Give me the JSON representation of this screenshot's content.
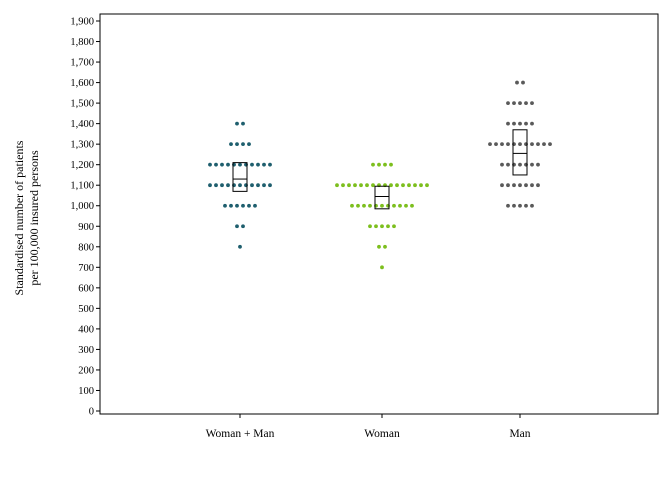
{
  "chart_data": {
    "type": "scatter",
    "subtype": "dot-strip-with-box",
    "title": "",
    "xlabel": "",
    "ylabel_lines": [
      "Standardised number of patients",
      "per 100,000 insured persons"
    ],
    "ylim": [
      0,
      1900
    ],
    "y_ticks": [
      "0",
      "100",
      "200",
      "300",
      "400",
      "500",
      "600",
      "700",
      "800",
      "900",
      "1,000",
      "1,100",
      "1,200",
      "1,300",
      "1,400",
      "1,500",
      "1,600",
      "1,700",
      "1,800",
      "1,900"
    ],
    "grid": false,
    "categories": [
      "Woman + Man",
      "Woman",
      "Man"
    ],
    "series": [
      {
        "category": "Woman + Man",
        "color": "#1f5f6e",
        "points": [
          {
            "y": 1400,
            "count": 2
          },
          {
            "y": 1300,
            "count": 4
          },
          {
            "y": 1200,
            "count": 11
          },
          {
            "y": 1100,
            "count": 11
          },
          {
            "y": 1000,
            "count": 6
          },
          {
            "y": 900,
            "count": 2
          },
          {
            "y": 800,
            "count": 1
          }
        ],
        "box": {
          "q1": 1070,
          "median": 1130,
          "q3": 1210
        }
      },
      {
        "category": "Woman",
        "color": "#7dbf1e",
        "points": [
          {
            "y": 1200,
            "count": 4
          },
          {
            "y": 1100,
            "count": 16
          },
          {
            "y": 1000,
            "count": 11
          },
          {
            "y": 900,
            "count": 5
          },
          {
            "y": 800,
            "count": 2
          },
          {
            "y": 700,
            "count": 1
          }
        ],
        "box": {
          "q1": 985,
          "median": 1045,
          "q3": 1095
        }
      },
      {
        "category": "Man",
        "color": "#5a5a5a",
        "points": [
          {
            "y": 1600,
            "count": 2
          },
          {
            "y": 1500,
            "count": 5
          },
          {
            "y": 1400,
            "count": 5
          },
          {
            "y": 1300,
            "count": 11
          },
          {
            "y": 1200,
            "count": 7
          },
          {
            "y": 1100,
            "count": 7
          },
          {
            "y": 1000,
            "count": 5
          }
        ],
        "box": {
          "q1": 1150,
          "median": 1255,
          "q3": 1370
        }
      }
    ]
  }
}
